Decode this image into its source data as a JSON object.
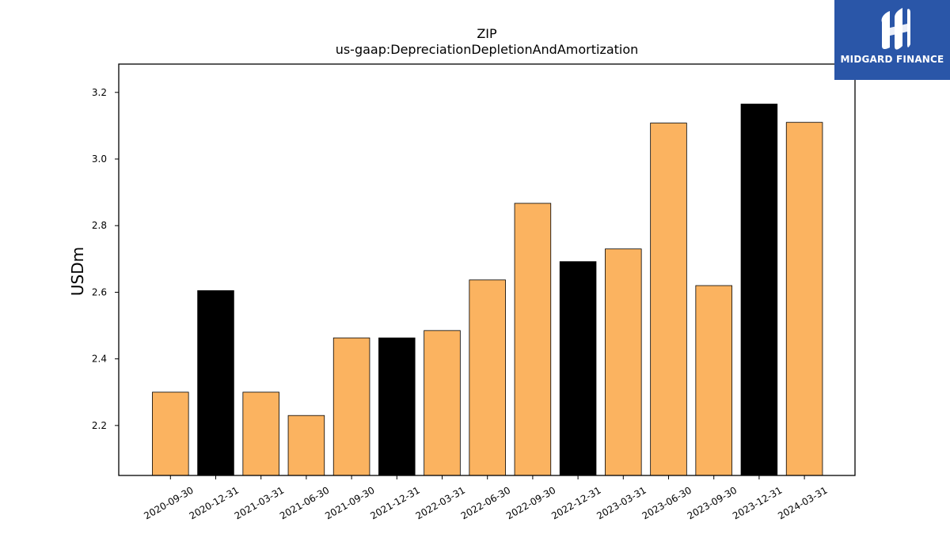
{
  "chart_data": {
    "type": "bar",
    "title": "ZIP",
    "subtitle": "us-gaap:DepreciationDepletionAndAmortization",
    "xlabel": "",
    "ylabel": "USDm",
    "ylim": [
      2.05,
      3.285
    ],
    "yticks": [
      "2.2",
      "2.4",
      "2.6",
      "2.8",
      "3.0",
      "3.2"
    ],
    "grid": false,
    "categories": [
      "2020-09-30",
      "2020-12-31",
      "2021-03-31",
      "2021-06-30",
      "2021-09-30",
      "2021-12-31",
      "2022-03-31",
      "2022-06-30",
      "2022-09-30",
      "2022-12-31",
      "2023-03-31",
      "2023-06-30",
      "2023-09-30",
      "2023-12-31",
      "2024-03-31"
    ],
    "values": [
      2.3,
      2.605,
      2.3,
      2.23,
      2.463,
      2.463,
      2.485,
      2.637,
      2.867,
      2.692,
      2.73,
      3.108,
      2.62,
      3.165,
      3.11
    ],
    "highlight": [
      false,
      true,
      false,
      false,
      false,
      true,
      false,
      false,
      false,
      true,
      false,
      false,
      false,
      true,
      false
    ],
    "colors": {
      "normal": "#fbb360",
      "highlight": "#000000",
      "edge": "#000000"
    }
  },
  "logo": {
    "text": "MIDGARD FINANCE",
    "background": "#2a56a8"
  }
}
